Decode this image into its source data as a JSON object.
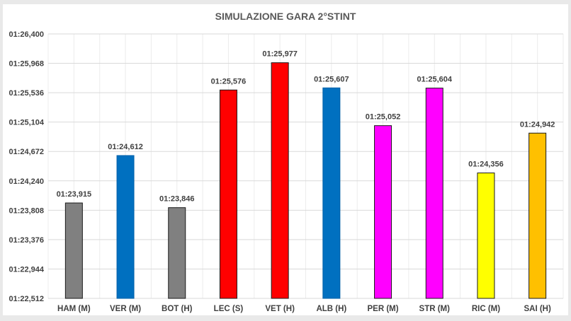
{
  "chart_data": {
    "type": "bar",
    "title": "SIMULAZIONE GARA 2°STINT",
    "xlabel": "",
    "ylabel": "",
    "ylim": [
      "01:22,512",
      "01:26,400"
    ],
    "y_ticks": [
      "01:22,512",
      "01:22,944",
      "01:23,376",
      "01:23,808",
      "01:24,240",
      "01:24,672",
      "01:25,104",
      "01:25,536",
      "01:25,968",
      "01:26,400"
    ],
    "grid": true,
    "legend": "none",
    "categories": [
      "HAM (M)",
      "VER (M)",
      "BOT (H)",
      "LEC (S)",
      "VET (H)",
      "ALB (H)",
      "PER (M)",
      "STR (M)",
      "RIC  (M)",
      "SAI (H)"
    ],
    "values": [
      "01:23,915",
      "01:24,612",
      "01:23,846",
      "01:25,576",
      "01:25,977",
      "01:25,607",
      "01:25,052",
      "01:25,604",
      "01:24,356",
      "01:24,942"
    ],
    "colors": [
      "#808080",
      "#0070C0",
      "#808080",
      "#FF0000",
      "#FF0000",
      "#0070C0",
      "#FF00FF",
      "#FF00FF",
      "#FFFF00",
      "#FFC000"
    ]
  }
}
